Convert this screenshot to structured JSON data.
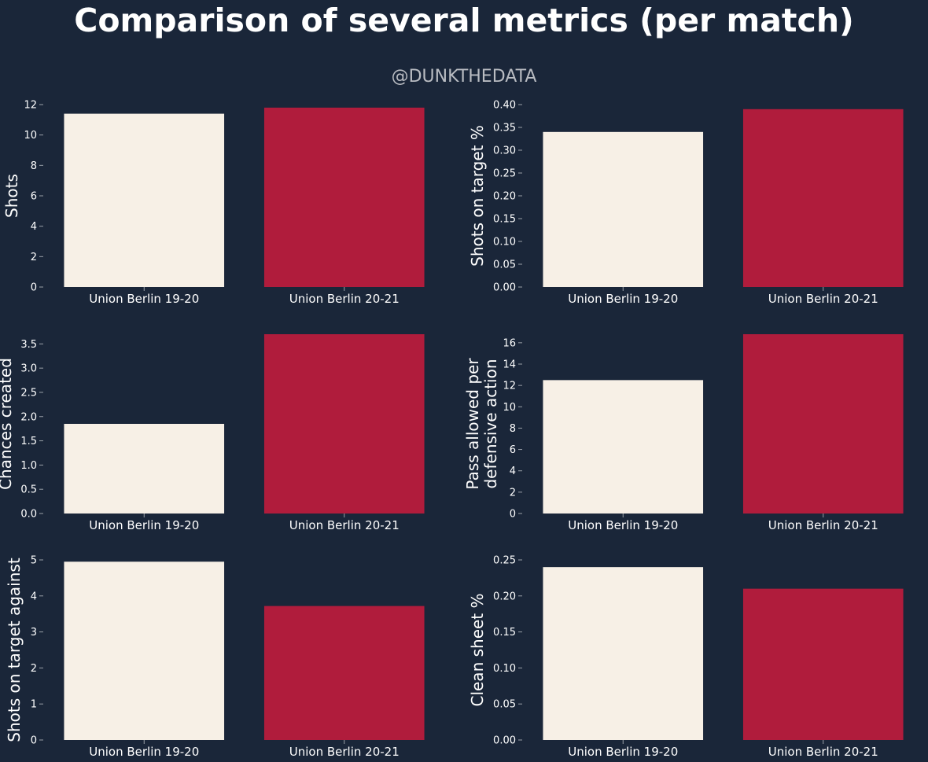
{
  "title": "Comparison of several metrics (per match)",
  "subtitle": "@DUNKTHEDATA",
  "colors": {
    "background": "#1a2639",
    "series_1920": "#f7f0e6",
    "series_2021": "#b01c3c",
    "text": "#ffffff"
  },
  "chart_data": [
    {
      "type": "bar",
      "categories": [
        "Union Berlin 19-20",
        "Union Berlin 20-21"
      ],
      "values": [
        11.4,
        11.8
      ],
      "ylabel": "Shots",
      "ylim": [
        0,
        12
      ],
      "yticks": [
        0,
        2,
        4,
        6,
        8,
        10,
        12
      ],
      "ytick_labels": [
        "0",
        "2",
        "4",
        "6",
        "8",
        "10",
        "12"
      ]
    },
    {
      "type": "bar",
      "categories": [
        "Union Berlin 19-20",
        "Union Berlin 20-21"
      ],
      "values": [
        0.34,
        0.39
      ],
      "ylabel": "Shots on target %",
      "ylim": [
        0,
        0.4
      ],
      "yticks": [
        0,
        0.05,
        0.1,
        0.15,
        0.2,
        0.25,
        0.3,
        0.35,
        0.4
      ],
      "ytick_labels": [
        "0.00",
        "0.05",
        "0.10",
        "0.15",
        "0.20",
        "0.25",
        "0.30",
        "0.35",
        "0.40"
      ]
    },
    {
      "type": "bar",
      "categories": [
        "Union Berlin 19-20",
        "Union Berlin 20-21"
      ],
      "values": [
        1.85,
        3.7
      ],
      "ylabel": "Chances created",
      "ylim": [
        0,
        3.7
      ],
      "yticks": [
        0,
        0.5,
        1,
        1.5,
        2,
        2.5,
        3,
        3.5
      ],
      "ytick_labels": [
        "0.0",
        "0.5",
        "1.0",
        "1.5",
        "2.0",
        "2.5",
        "3.0",
        "3.5"
      ]
    },
    {
      "type": "bar",
      "categories": [
        "Union Berlin 19-20",
        "Union Berlin 20-21"
      ],
      "values": [
        12.5,
        16.8
      ],
      "ylabel": [
        "Pass allowed per",
        "defensive action"
      ],
      "ylim": [
        0,
        16.8
      ],
      "yticks": [
        0,
        2,
        4,
        6,
        8,
        10,
        12,
        14,
        16
      ],
      "ytick_labels": [
        "0",
        "2",
        "4",
        "6",
        "8",
        "10",
        "12",
        "14",
        "16"
      ]
    },
    {
      "type": "bar",
      "categories": [
        "Union Berlin 19-20",
        "Union Berlin 20-21"
      ],
      "values": [
        4.95,
        3.72
      ],
      "ylabel": "Shots on target against",
      "ylim": [
        0,
        5
      ],
      "yticks": [
        0,
        1,
        2,
        3,
        4,
        5
      ],
      "ytick_labels": [
        "0",
        "1",
        "2",
        "3",
        "4",
        "5"
      ]
    },
    {
      "type": "bar",
      "categories": [
        "Union Berlin 19-20",
        "Union Berlin 20-21"
      ],
      "values": [
        0.24,
        0.21
      ],
      "ylabel": "Clean sheet %",
      "ylim": [
        0,
        0.25
      ],
      "yticks": [
        0,
        0.05,
        0.1,
        0.15,
        0.2,
        0.25
      ],
      "ytick_labels": [
        "0.00",
        "0.05",
        "0.10",
        "0.15",
        "0.20",
        "0.25"
      ]
    }
  ]
}
